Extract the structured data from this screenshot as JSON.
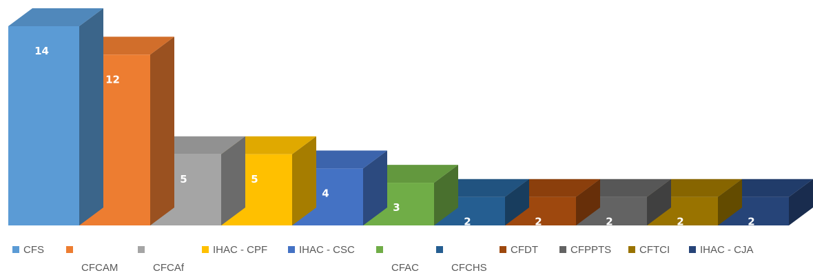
{
  "chart_data": {
    "type": "bar",
    "variant": "3d-column",
    "categories": [
      "CFS",
      "CFCAM",
      "CFCAf",
      "IHAC - CPF",
      "IHAC - CSC",
      "CFAC",
      "CFCHS",
      "CFDT",
      "CFPPTS",
      "CFTCI",
      "IHAC - CJA"
    ],
    "values": [
      14,
      12,
      5,
      5,
      4,
      3,
      2,
      2,
      2,
      2,
      2
    ],
    "data_labels": [
      "14",
      "12",
      "5",
      "5",
      "4",
      "3",
      "2",
      "2",
      "2",
      "2",
      "2"
    ],
    "colors": [
      "#5b9bd5",
      "#ed7d31",
      "#a5a5a5",
      "#ffc000",
      "#4472c4",
      "#70ad47",
      "#255e91",
      "#9e480e",
      "#636363",
      "#997300",
      "#264478"
    ],
    "title": "",
    "xlabel": "",
    "ylabel": "",
    "ylim": [
      0,
      14
    ],
    "grid": false,
    "legend": "bottom"
  }
}
